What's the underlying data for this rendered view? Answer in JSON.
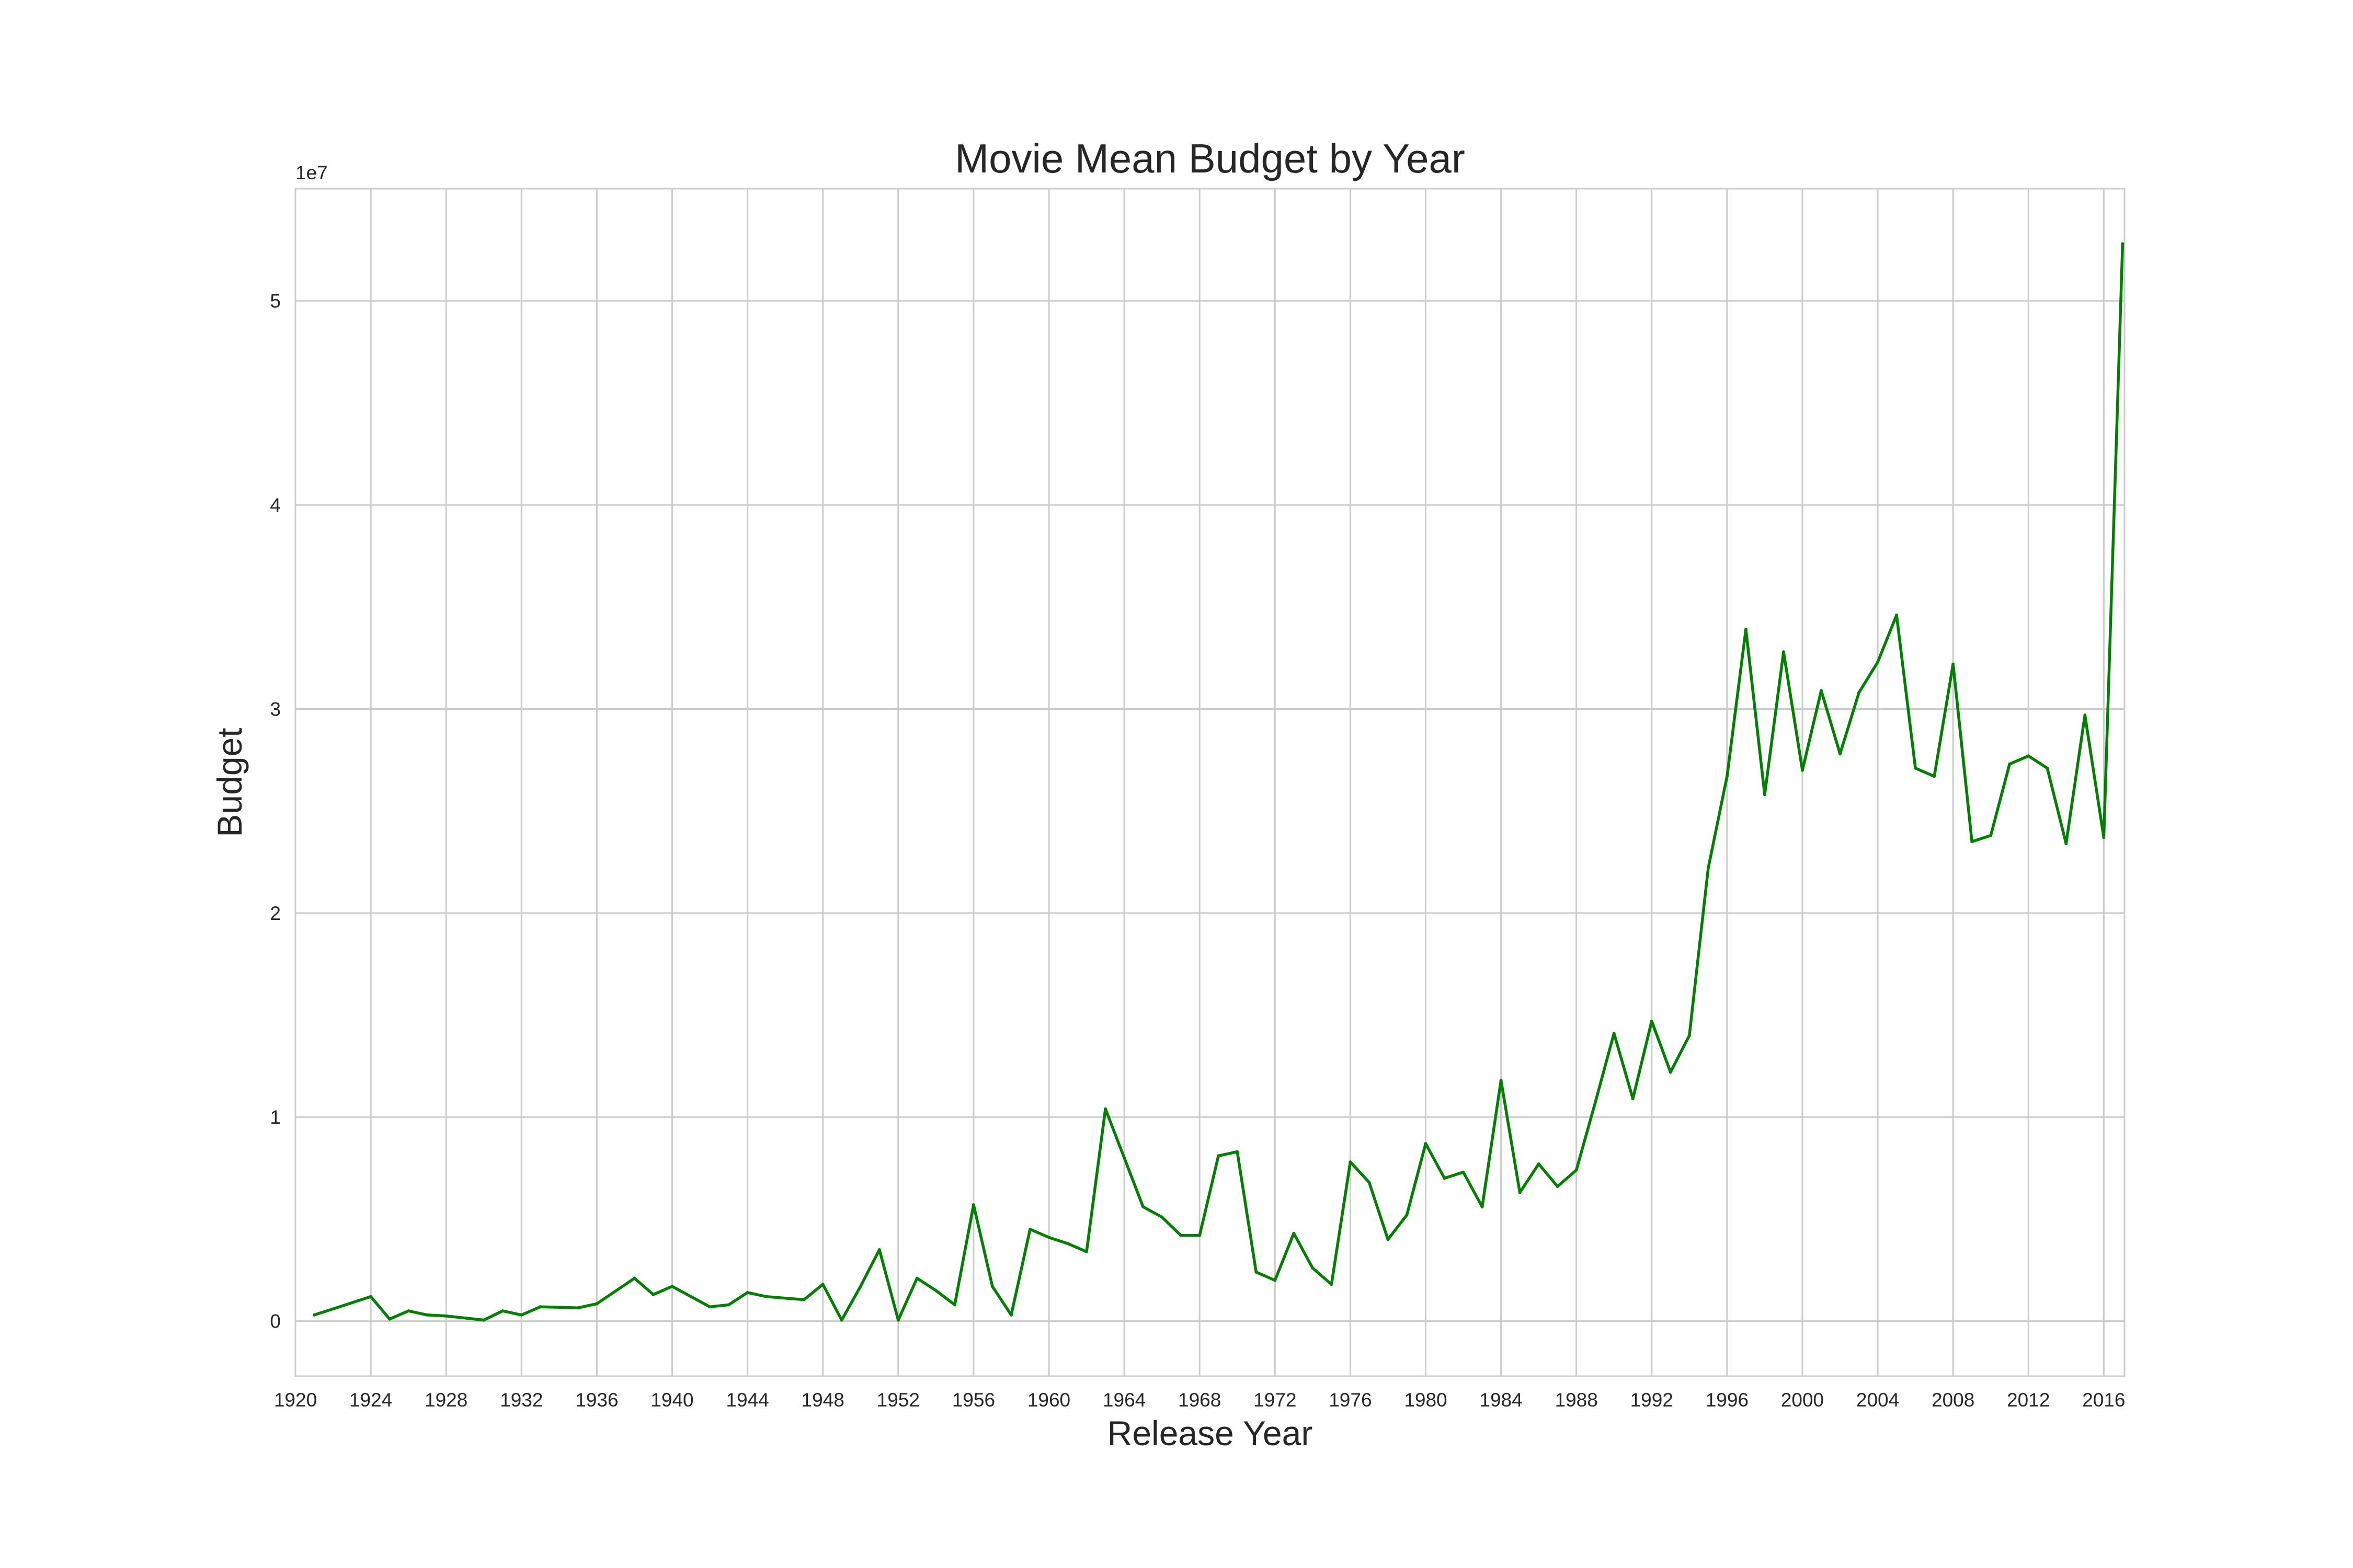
{
  "chart_data": {
    "type": "line",
    "title": "Movie Mean Budget by Year",
    "xlabel": "Release Year",
    "ylabel": "Budget",
    "y_offset_text": "1e7",
    "xlim": [
      1920,
      2017.1
    ],
    "ylim": [
      -2700000,
      55500000
    ],
    "grid": true,
    "legend": "none",
    "colors": {
      "line": "#008000",
      "grid": "#cccccc",
      "text": "#262626",
      "background": "#ffffff"
    },
    "x_ticks": [
      1920,
      1924,
      1928,
      1932,
      1936,
      1940,
      1944,
      1948,
      1952,
      1956,
      1960,
      1964,
      1968,
      1972,
      1976,
      1980,
      1984,
      1988,
      1992,
      1996,
      2000,
      2004,
      2008,
      2012,
      2016
    ],
    "x_tick_labels": [
      "1920",
      "1924",
      "1928",
      "1932",
      "1936",
      "1940",
      "1944",
      "1948",
      "1952",
      "1956",
      "1960",
      "1964",
      "1968",
      "1972",
      "1976",
      "1980",
      "1984",
      "1988",
      "1992",
      "1996",
      "2000",
      "2004",
      "2008",
      "2012",
      "2016"
    ],
    "y_ticks": [
      0,
      10000000,
      20000000,
      30000000,
      40000000,
      50000000
    ],
    "y_tick_labels": [
      "0",
      "1",
      "2",
      "3",
      "4",
      "5"
    ],
    "series": [
      {
        "x": [
          1921,
          1924,
          1925,
          1926,
          1927,
          1928,
          1930,
          1931,
          1932,
          1933,
          1935,
          1936,
          1938,
          1939,
          1940,
          1942,
          1943,
          1944,
          1945,
          1947,
          1948,
          1949,
          1950,
          1951,
          1952,
          1953,
          1954,
          1955,
          1956,
          1957,
          1958,
          1959,
          1960,
          1961,
          1962,
          1963,
          1964,
          1965,
          1966,
          1967,
          1968,
          1969,
          1970,
          1971,
          1972,
          1973,
          1974,
          1975,
          1976,
          1977,
          1978,
          1979,
          1980,
          1981,
          1982,
          1983,
          1984,
          1985,
          1986,
          1987,
          1988,
          1989,
          1990,
          1991,
          1992,
          1993,
          1994,
          1995,
          1996,
          1997,
          1998,
          1999,
          2000,
          2001,
          2002,
          2003,
          2004,
          2005,
          2006,
          2007,
          2008,
          2009,
          2010,
          2011,
          2012,
          2013,
          2014,
          2015,
          2016,
          2017
        ],
        "values": [
          300000,
          1200000,
          100000,
          500000,
          300000,
          250000,
          50000,
          500000,
          300000,
          700000,
          650000,
          850000,
          2100000,
          1300000,
          1700000,
          700000,
          800000,
          1400000,
          1200000,
          1050000,
          1800000,
          50000,
          1700000,
          3500000,
          50000,
          2100000,
          1500000,
          800000,
          5700000,
          1700000,
          300000,
          4500000,
          4100000,
          3800000,
          3400000,
          10400000,
          8000000,
          5600000,
          5100000,
          4200000,
          4200000,
          8100000,
          8300000,
          2400000,
          2000000,
          4300000,
          2600000,
          1800000,
          7800000,
          6800000,
          4000000,
          5200000,
          8700000,
          7000000,
          7300000,
          5600000,
          11800000,
          6300000,
          7700000,
          6600000,
          7400000,
          10700000,
          14100000,
          10900000,
          14700000,
          12200000,
          14000000,
          22200000,
          26700000,
          33900000,
          25800000,
          32800000,
          27000000,
          30900000,
          27800000,
          30800000,
          32300000,
          34600000,
          27100000,
          26700000,
          32200000,
          23500000,
          23800000,
          27300000,
          27700000,
          27100000,
          23400000,
          29700000,
          23700000,
          52800000
        ]
      }
    ]
  }
}
